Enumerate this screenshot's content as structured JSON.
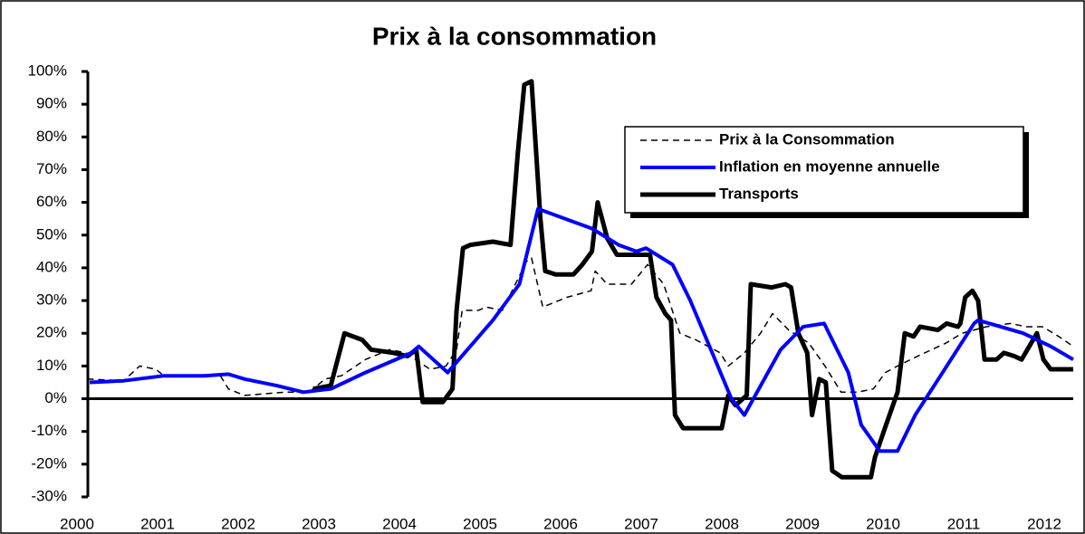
{
  "chart_data": {
    "type": "line",
    "title": "Prix à la consommation",
    "xlim": [
      2000,
      2012.28
    ],
    "xticks": [
      2000,
      2001,
      2002,
      2003,
      2004,
      2005,
      2006,
      2007,
      2008,
      2009,
      2010,
      2011,
      2012
    ],
    "ylim": [
      -30,
      100
    ],
    "yticks": [
      {
        "value": -30,
        "label": "-30%"
      },
      {
        "value": -20,
        "label": "-20%"
      },
      {
        "value": -10,
        "label": "-10%"
      },
      {
        "value": 0,
        "label": "0%"
      },
      {
        "value": 10,
        "label": "10%"
      },
      {
        "value": 20,
        "label": "20%"
      },
      {
        "value": 30,
        "label": "30%"
      },
      {
        "value": 40,
        "label": "40%"
      },
      {
        "value": 50,
        "label": "50%"
      },
      {
        "value": 60,
        "label": "60%"
      },
      {
        "value": 70,
        "label": "70%"
      },
      {
        "value": 80,
        "label": "80%"
      },
      {
        "value": 90,
        "label": "90%"
      },
      {
        "value": 100,
        "label": "100%"
      }
    ],
    "legend": "upper right",
    "series": [
      {
        "name": "Prix à la Consommation",
        "color": "#000000",
        "style": "dashed",
        "x": [
          2000.05,
          2000.5,
          2000.7,
          2000.9,
          2001.0,
          2001.5,
          2001.7,
          2001.8,
          2002.0,
          2002.5,
          2002.8,
          2003.0,
          2003.2,
          2003.5,
          2003.8,
          2004.0,
          2004.3,
          2004.5,
          2004.63,
          2004.7,
          2004.9,
          2005.0,
          2005.2,
          2005.5,
          2005.56,
          2005.7,
          2006.0,
          2006.3,
          2006.35,
          2006.5,
          2006.8,
          2007.0,
          2007.2,
          2007.4,
          2007.6,
          2007.9,
          2008.0,
          2008.2,
          2008.4,
          2008.55,
          2008.75,
          2009.0,
          2009.2,
          2009.4,
          2009.6,
          2009.8,
          2009.95,
          2010.1,
          2010.35,
          2010.7,
          2010.9,
          2011.2,
          2011.5,
          2011.7,
          2011.9,
          2012.1,
          2012.28
        ],
        "values": [
          6,
          5.5,
          10,
          9,
          7,
          7,
          7,
          3,
          1,
          2,
          2,
          6,
          7,
          12,
          15,
          14,
          9,
          10,
          15,
          27,
          27,
          28,
          27,
          42,
          43,
          28,
          31,
          33,
          39,
          35,
          35,
          41,
          35,
          20,
          18,
          14,
          10,
          14,
          20,
          26,
          21,
          17,
          10,
          2,
          2,
          3,
          8,
          10,
          13,
          17,
          20,
          22,
          23,
          22,
          22,
          19,
          16
        ]
      },
      {
        "name": "Inflation en moyenne annuelle",
        "color": "#0000ff",
        "style": "solid",
        "x": [
          2000.08,
          2000.5,
          2001.0,
          2001.5,
          2001.8,
          2002.0,
          2002.4,
          2002.73,
          2003.07,
          2003.5,
          2004.07,
          2004.16,
          2004.52,
          2005.08,
          2005.41,
          2005.64,
          2006.31,
          2006.64,
          2006.86,
          2006.98,
          2007.31,
          2007.53,
          2007.87,
          2008.04,
          2008.2,
          2008.65,
          2008.93,
          2009.19,
          2009.49,
          2009.65,
          2009.88,
          2010.1,
          2010.32,
          2010.66,
          2011.05,
          2011.1,
          2011.66,
          2012.0,
          2012.28
        ],
        "values": [
          5,
          5.5,
          7,
          7,
          7.5,
          6,
          4,
          2,
          3,
          8,
          14,
          16,
          8,
          24,
          35,
          58,
          52,
          47,
          45,
          46,
          41,
          30,
          10,
          0,
          -5,
          15,
          22,
          23,
          8,
          -8,
          -16,
          -16,
          -5,
          8,
          23,
          24,
          20,
          16,
          12
        ]
      },
      {
        "name": "Transports",
        "color": "#000000",
        "style": "thick",
        "x": [
          2002.85,
          2003.07,
          2003.24,
          2003.46,
          2003.57,
          2003.85,
          2004.02,
          2004.13,
          2004.21,
          2004.46,
          2004.58,
          2004.63,
          2004.71,
          2004.8,
          2005.08,
          2005.3,
          2005.39,
          2005.47,
          2005.56,
          2005.67,
          2005.73,
          2005.86,
          2006.08,
          2006.19,
          2006.31,
          2006.38,
          2006.5,
          2006.62,
          2006.86,
          2007.03,
          2007.11,
          2007.22,
          2007.29,
          2007.34,
          2007.44,
          2007.76,
          2007.92,
          2008.0,
          2008.09,
          2008.23,
          2008.28,
          2008.54,
          2008.71,
          2008.78,
          2008.87,
          2008.98,
          2009.04,
          2009.13,
          2009.21,
          2009.29,
          2009.41,
          2009.77,
          2009.82,
          2009.93,
          2010.1,
          2010.19,
          2010.3,
          2010.38,
          2010.6,
          2010.71,
          2010.85,
          2010.88,
          2010.94,
          2011.03,
          2011.1,
          2011.18,
          2011.33,
          2011.42,
          2011.55,
          2011.64,
          2011.83,
          2011.91,
          2012.0,
          2012.28
        ],
        "values": [
          3,
          4,
          20,
          18,
          15,
          14,
          13,
          15,
          -1,
          -1,
          3,
          27,
          46,
          47,
          48,
          47,
          75,
          96,
          97,
          55,
          39,
          38,
          38,
          41,
          45,
          60,
          49,
          44,
          44,
          44,
          31,
          26,
          24,
          -5,
          -9,
          -9,
          -9,
          1,
          -2,
          1,
          35,
          34,
          35,
          34,
          20,
          14,
          -5,
          6,
          5,
          -22,
          -24,
          -24,
          -18,
          -10,
          2,
          20,
          19,
          22,
          21,
          23,
          22,
          23,
          31,
          33,
          30,
          12,
          12,
          14,
          13,
          12,
          20,
          12,
          9,
          9
        ]
      }
    ]
  }
}
